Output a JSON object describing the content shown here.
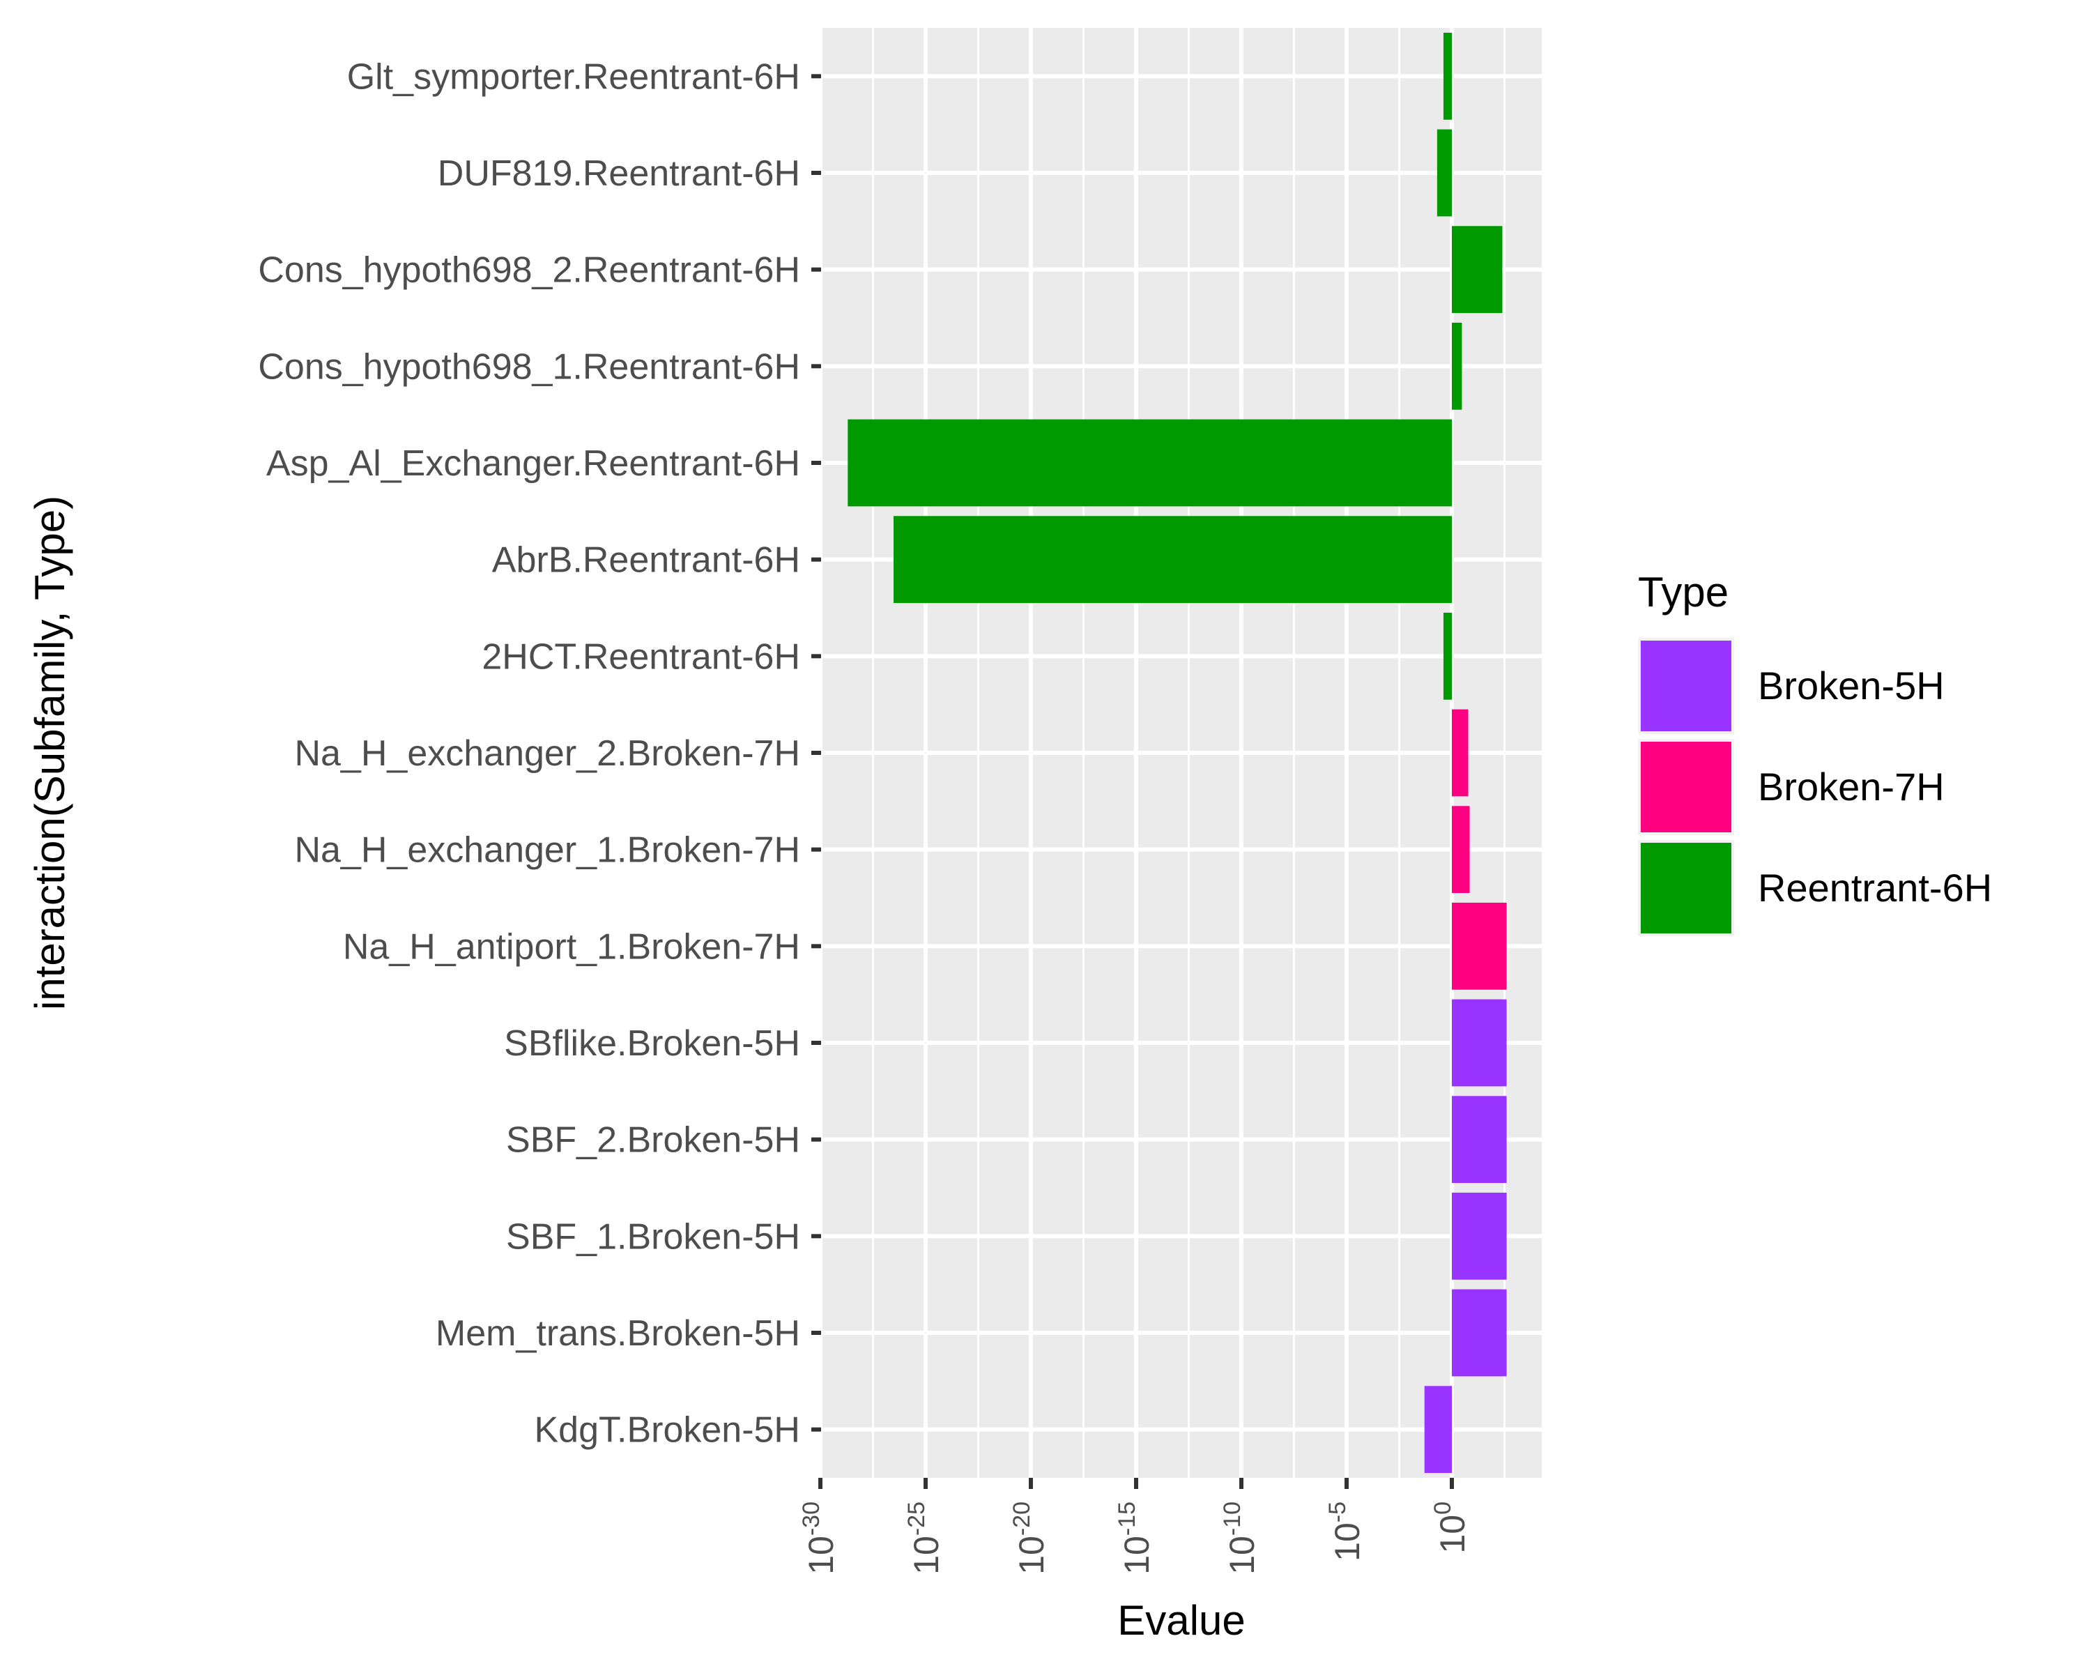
{
  "chart_data": {
    "type": "bar",
    "orientation": "horizontal",
    "xlabel": "Evalue",
    "ylabel": "interaction(Subfamily, Type)",
    "x_scale": "log10",
    "xlim": [
      1e-31,
      1000.0
    ],
    "x_ticks": [
      {
        "base": "10",
        "exp": "-30",
        "value": 1e-30
      },
      {
        "base": "10",
        "exp": "-25",
        "value": 1e-25
      },
      {
        "base": "10",
        "exp": "-20",
        "value": 1e-20
      },
      {
        "base": "10",
        "exp": "-15",
        "value": 1e-15
      },
      {
        "base": "10",
        "exp": "-10",
        "value": 1e-10
      },
      {
        "base": "10",
        "exp": "-5",
        "value": 1e-05
      },
      {
        "base": "10",
        "exp": "0",
        "value": 1
      }
    ],
    "grid": true,
    "legend": {
      "title": "Type",
      "position": "right",
      "entries": [
        {
          "name": "Broken-5H",
          "color": "#9933FF"
        },
        {
          "name": "Broken-7H",
          "color": "#FF0080"
        },
        {
          "name": "Reentrant-6H",
          "color": "#009900"
        }
      ]
    },
    "categories": [
      "Glt_symporter.Reentrant-6H",
      "DUF819.Reentrant-6H",
      "Cons_hypoth698_2.Reentrant-6H",
      "Cons_hypoth698_1.Reentrant-6H",
      "Asp_Al_Exchanger.Reentrant-6H",
      "AbrB.Reentrant-6H",
      "2HCT.Reentrant-6H",
      "Na_H_exchanger_2.Broken-7H",
      "Na_H_exchanger_1.Broken-7H",
      "Na_H_antiport_1.Broken-7H",
      "SBflike.Broken-5H",
      "SBF_2.Broken-5H",
      "SBF_1.Broken-5H",
      "Mem_trans.Broken-5H",
      "KdgT.Broken-5H"
    ],
    "bars": [
      {
        "category": "Glt_symporter.Reentrant-6H",
        "type": "Reentrant-6H",
        "value": 0.4
      },
      {
        "category": "DUF819.Reentrant-6H",
        "type": "Reentrant-6H",
        "value": 0.2
      },
      {
        "category": "Cons_hypoth698_2.Reentrant-6H",
        "type": "Reentrant-6H",
        "value": 250
      },
      {
        "category": "Cons_hypoth698_1.Reentrant-6H",
        "type": "Reentrant-6H",
        "value": 3
      },
      {
        "category": "Asp_Al_Exchanger.Reentrant-6H",
        "type": "Reentrant-6H",
        "value": 2e-29
      },
      {
        "category": "AbrB.Reentrant-6H",
        "type": "Reentrant-6H",
        "value": 3e-27
      },
      {
        "category": "2HCT.Reentrant-6H",
        "type": "Reentrant-6H",
        "value": 0.4
      },
      {
        "category": "Na_H_exchanger_2.Broken-7H",
        "type": "Broken-7H",
        "value": 6
      },
      {
        "category": "Na_H_exchanger_1.Broken-7H",
        "type": "Broken-7H",
        "value": 7
      },
      {
        "category": "Na_H_antiport_1.Broken-7H",
        "type": "Broken-7H",
        "value": 400
      },
      {
        "category": "SBflike.Broken-5H",
        "type": "Broken-5H",
        "value": 400
      },
      {
        "category": "SBF_2.Broken-5H",
        "type": "Broken-5H",
        "value": 400
      },
      {
        "category": "SBF_1.Broken-5H",
        "type": "Broken-5H",
        "value": 400
      },
      {
        "category": "Mem_trans.Broken-5H",
        "type": "Broken-5H",
        "value": 400
      },
      {
        "category": "KdgT.Broken-5H",
        "type": "Broken-5H",
        "value": 0.05
      }
    ]
  }
}
